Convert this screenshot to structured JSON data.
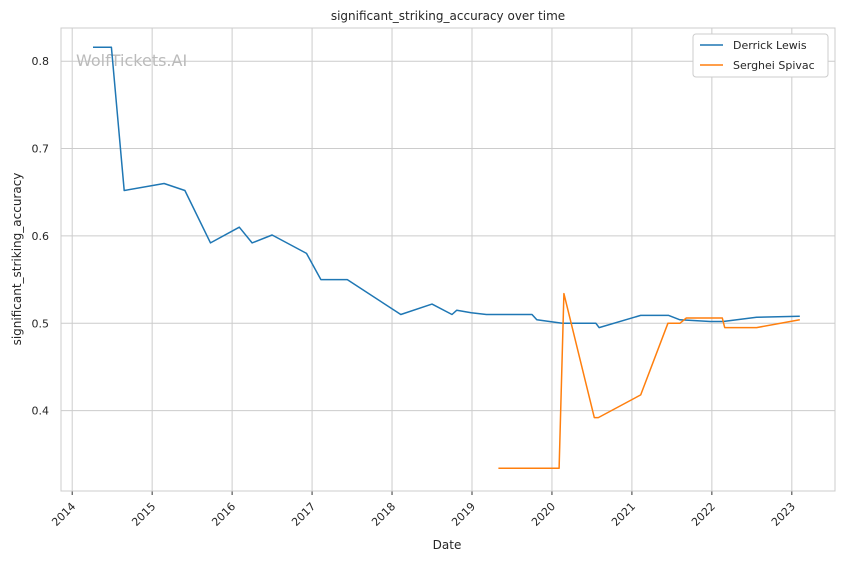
{
  "watermark": "WolfTickets.AI",
  "chart_data": {
    "type": "line",
    "title": "significant_striking_accuracy over time",
    "xlabel": "Date",
    "ylabel": "significant_striking_accuracy",
    "xlim": [
      2013.86,
      2023.54
    ],
    "ylim": [
      0.308,
      0.838
    ],
    "xticks": [
      2014,
      2015,
      2016,
      2017,
      2018,
      2019,
      2020,
      2021,
      2022,
      2023
    ],
    "xtick_labels": [
      "2014",
      "2015",
      "2016",
      "2017",
      "2018",
      "2019",
      "2020",
      "2021",
      "2022",
      "2023"
    ],
    "yticks": [
      0.4,
      0.5,
      0.6,
      0.7,
      0.8
    ],
    "ytick_labels": [
      "0.4",
      "0.5",
      "0.6",
      "0.7",
      "0.8"
    ],
    "grid": true,
    "legend_position": "top-right",
    "series": [
      {
        "name": "Derrick Lewis",
        "color": "#1f77b4",
        "x": [
          2014.26,
          2014.49,
          2014.65,
          2015.15,
          2015.41,
          2015.73,
          2016.09,
          2016.25,
          2016.5,
          2016.93,
          2017.11,
          2017.44,
          2018.11,
          2018.5,
          2018.75,
          2018.81,
          2018.99,
          2019.18,
          2019.75,
          2019.81,
          2020.13,
          2020.55,
          2020.59,
          2021.11,
          2021.46,
          2021.6,
          2021.98,
          2022.14,
          2022.56,
          2023.1
        ],
        "y": [
          0.816,
          0.816,
          0.652,
          0.66,
          0.652,
          0.592,
          0.61,
          0.592,
          0.601,
          0.58,
          0.55,
          0.55,
          0.51,
          0.522,
          0.51,
          0.515,
          0.512,
          0.51,
          0.51,
          0.504,
          0.5,
          0.5,
          0.495,
          0.509,
          0.509,
          0.504,
          0.502,
          0.502,
          0.507,
          0.508
        ]
      },
      {
        "name": "Serghei Spivac",
        "color": "#ff7f0e",
        "x": [
          2019.33,
          2020.09,
          2020.15,
          2020.53,
          2020.58,
          2021.11,
          2021.45,
          2021.6,
          2021.68,
          2022.13,
          2022.16,
          2022.56,
          2023.1
        ],
        "y": [
          0.334,
          0.334,
          0.534,
          0.392,
          0.392,
          0.418,
          0.5,
          0.5,
          0.506,
          0.506,
          0.495,
          0.495,
          0.504
        ]
      }
    ]
  }
}
